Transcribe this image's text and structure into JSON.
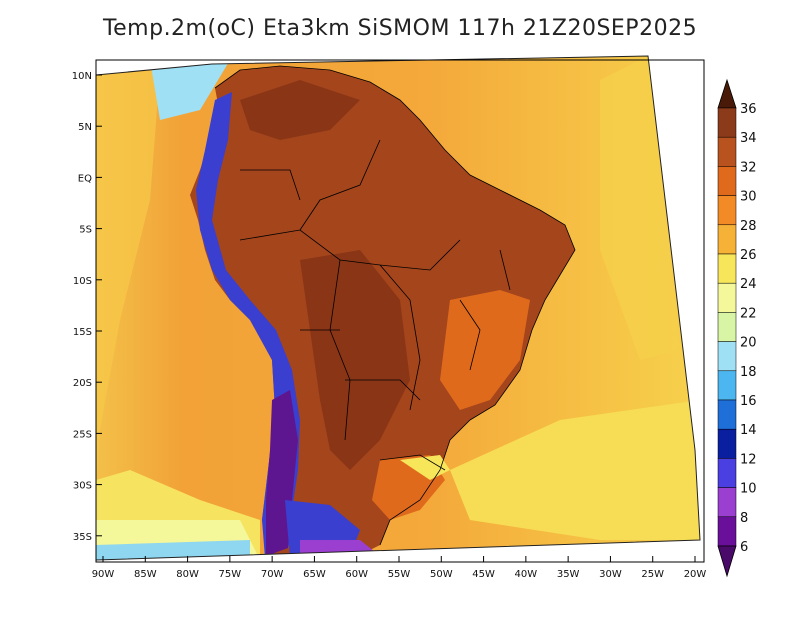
{
  "title": "Temp.2m(oC) Eta3km SiSMOM 117h 21Z20SEP2025",
  "axes": {
    "lat_labels": [
      "10N",
      "5N",
      "EQ",
      "5S",
      "10S",
      "15S",
      "20S",
      "25S",
      "30S",
      "35S"
    ],
    "lon_labels": [
      "90W",
      "85W",
      "80W",
      "75W",
      "70W",
      "65W",
      "60W",
      "55W",
      "50W",
      "45W",
      "40W",
      "35W",
      "30W",
      "25W",
      "20W"
    ]
  },
  "colorbar": {
    "labels": [
      "36",
      "34",
      "32",
      "30",
      "28",
      "26",
      "24",
      "22",
      "20",
      "18",
      "16",
      "14",
      "12",
      "10",
      "8",
      "6"
    ],
    "colors": [
      "#6b2a12",
      "#8b3b1a",
      "#b8521e",
      "#e06a1c",
      "#f28a26",
      "#f6b236",
      "#f7e55a",
      "#f4f79a",
      "#d7f5a4",
      "#9fe0f4",
      "#4cb6f0",
      "#1f6fd8",
      "#0a1fa0",
      "#4a3fe0",
      "#9b3fd0",
      "#6a0f9a"
    ],
    "top_arrow_color": "#4a1a08",
    "bottom_arrow_color": "#4a0a6a"
  },
  "palette": {
    "ocean_base": "#f4a93a",
    "ocean_warm": "#f7d04a",
    "ocean_cool": "#f6ee70",
    "land_hot": "#a4451c",
    "land_hotter": "#8a3516",
    "andes_cold": "#3a3fd0",
    "andes_coldest": "#5e1690",
    "border": "#000000"
  }
}
